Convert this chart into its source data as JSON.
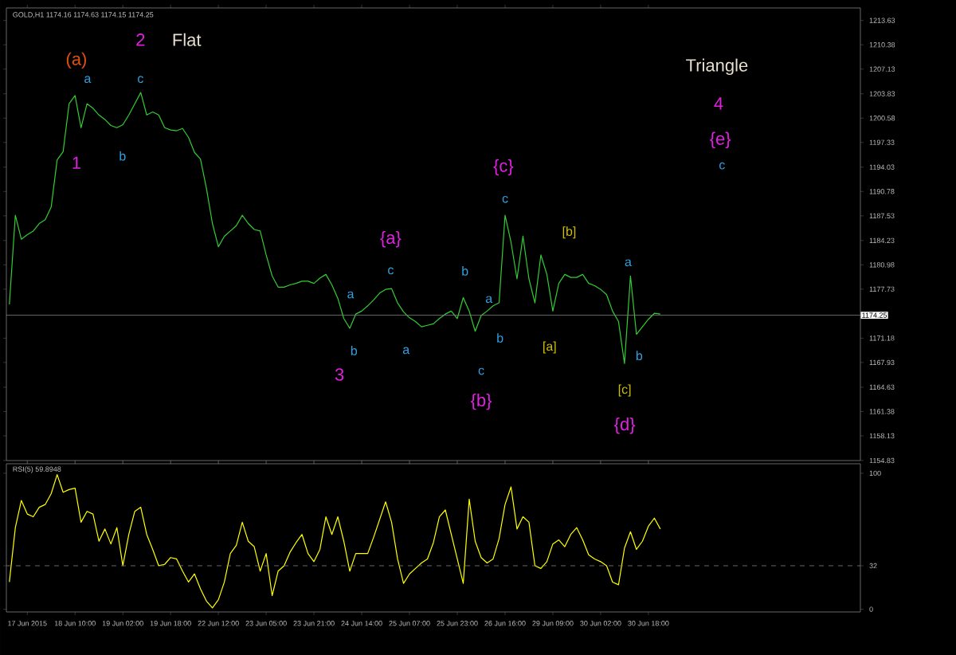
{
  "chart_data": [
    {
      "type": "line",
      "title": "GOLD,H1 1174.16 1174.63 1174.15 1174.25",
      "tick_labels": "y",
      "ylim": [
        1154.83,
        1215.3
      ],
      "categories": [
        null,
        null,
        null,
        null,
        null,
        null,
        null,
        null,
        null,
        null,
        null,
        null,
        null,
        null,
        null,
        null,
        null,
        null,
        null,
        null,
        null,
        null,
        null,
        null,
        null,
        null,
        null,
        null,
        null,
        null,
        null,
        null,
        null,
        null,
        null,
        null,
        null,
        null,
        null,
        null,
        null,
        null,
        null,
        null,
        null,
        null,
        null,
        null,
        null,
        null,
        null,
        null,
        null,
        null,
        null,
        null,
        null,
        null,
        null,
        null,
        null,
        null,
        null,
        null,
        null,
        null,
        null,
        null,
        null,
        null,
        null,
        null,
        null,
        null,
        null,
        null,
        null,
        null,
        null,
        null,
        null,
        null,
        null,
        null,
        null,
        null,
        null,
        null,
        null,
        null,
        null,
        null,
        null,
        null,
        null,
        null,
        null,
        null,
        null,
        null,
        null,
        null,
        null,
        null,
        null,
        null,
        null,
        null,
        null,
        null
      ],
      "yticks": [
        1154.83,
        1158.13,
        1161.38,
        1164.63,
        1167.93,
        1171.18,
        1177.73,
        1180.98,
        1184.23,
        1187.53,
        1190.78,
        1194.03,
        1197.33,
        1200.58,
        1203.83,
        1207.13,
        1210.38,
        1213.63
      ],
      "series": [
        {
          "color": "#33cc33",
          "values": [
            1175.7,
            1187.6,
            1184.4,
            1185.0,
            1185.5,
            1186.5,
            1187.0,
            1188.7,
            1195.0,
            1196.1,
            1202.5,
            1203.6,
            1199.3,
            1202.5,
            1201.9,
            1201.0,
            1200.4,
            1199.6,
            1199.3,
            1199.7,
            1201.0,
            1202.5,
            1204.0,
            1201.0,
            1201.4,
            1201.0,
            1199.3,
            1199.0,
            1198.9,
            1199.2,
            1198.0,
            1196.0,
            1195.1,
            1191.2,
            1186.5,
            1183.4,
            1184.8,
            1185.5,
            1186.2,
            1187.6,
            1186.5,
            1185.7,
            1185.5,
            1182.3,
            1179.5,
            1178.0,
            1178.0,
            1178.3,
            1178.5,
            1178.8,
            1178.8,
            1178.5,
            1179.2,
            1179.7,
            1178.3,
            1176.5,
            1173.8,
            1172.5,
            1174.4,
            1174.8,
            1175.5,
            1176.3,
            1177.2,
            1177.7,
            1177.8,
            1175.9,
            1174.7,
            1173.9,
            1173.4,
            1172.7,
            1172.9,
            1173.1,
            1173.8,
            1174.4,
            1174.8,
            1173.8,
            1176.6,
            1174.8,
            1172.1,
            1174.2,
            1174.8,
            1175.5,
            1175.9,
            1187.6,
            1184.0,
            1179.1,
            1184.8,
            1179.1,
            1175.9,
            1182.3,
            1179.7,
            1174.8,
            1178.5,
            1179.7,
            1179.3,
            1179.3,
            1179.7,
            1178.5,
            1178.2,
            1177.7,
            1177.0,
            1174.8,
            1173.4,
            1167.8,
            1179.5,
            1171.7,
            1172.7,
            1173.7,
            1174.5,
            1174.4
          ]
        }
      ],
      "ref_lines": [
        {
          "axis": "y",
          "value": 1174.25,
          "label": "1174.25",
          "color": "#808080",
          "line_style": "solid"
        }
      ],
      "annotations": [
        "(a)",
        "2",
        "Flat",
        "a",
        "c",
        "b",
        "1",
        "{a}",
        "c",
        "a",
        "b",
        "a",
        "3",
        "b",
        "a",
        "b",
        "c",
        "{b}",
        "{c}",
        "c",
        "[b]",
        "[a]",
        "a",
        "b",
        "[c]",
        "{d}",
        "Triangle",
        "4",
        "{e}",
        "c"
      ]
    },
    {
      "type": "line",
      "title": "RSI(5) 59.8948",
      "ylim": [
        -2,
        107
      ],
      "yticks": [
        0,
        32,
        100
      ],
      "categories": [
        null,
        null,
        null,
        "17 Jun 2015",
        null,
        null,
        null,
        null,
        null,
        null,
        null,
        "18 Jun 10:00",
        null,
        null,
        null,
        null,
        null,
        null,
        null,
        "19 Jun 02:00",
        null,
        null,
        null,
        null,
        null,
        null,
        null,
        "19 Jun 18:00",
        null,
        null,
        null,
        null,
        null,
        null,
        null,
        "22 Jun 12:00",
        null,
        null,
        null,
        null,
        null,
        null,
        null,
        "23 Jun 05:00",
        null,
        null,
        null,
        null,
        null,
        null,
        null,
        "23 Jun 21:00",
        null,
        null,
        null,
        null,
        null,
        null,
        null,
        "24 Jun 14:00",
        null,
        null,
        null,
        null,
        null,
        null,
        null,
        "25 Jun 07:00",
        null,
        null,
        null,
        null,
        null,
        null,
        null,
        "25 Jun 23:00",
        null,
        null,
        null,
        null,
        null,
        null,
        null,
        "26 Jun 16:00",
        null,
        null,
        null,
        null,
        null,
        null,
        null,
        "29 Jun 09:00",
        null,
        null,
        null,
        null,
        null,
        null,
        null,
        "30 Jun 02:00",
        null,
        null,
        null,
        null,
        null,
        null,
        null,
        "30 Jun 18:00",
        null,
        null
      ],
      "series": [
        {
          "color": "#ffff00",
          "values": [
            20,
            60,
            80,
            70,
            68,
            75,
            77,
            85,
            99,
            86,
            88,
            89,
            64,
            72,
            70,
            50,
            59,
            48,
            60,
            32,
            55,
            72,
            75,
            55,
            44,
            32,
            33,
            38,
            37,
            28,
            20,
            26,
            15,
            6,
            1,
            7,
            20,
            41,
            47,
            64,
            50,
            46,
            28,
            41,
            10,
            28,
            32,
            42,
            49,
            55,
            41,
            35,
            44,
            68,
            55,
            68,
            50,
            28,
            41,
            41,
            41,
            53,
            66,
            79,
            64,
            37,
            19,
            26,
            30,
            34,
            37,
            49,
            68,
            73,
            55,
            37,
            19,
            81,
            50,
            38,
            34,
            37,
            52,
            77,
            90,
            59,
            68,
            64,
            32,
            30,
            35,
            48,
            51,
            46,
            55,
            60,
            51,
            40,
            37,
            35,
            32,
            20,
            18,
            45,
            57,
            44,
            50,
            61,
            67,
            59
          ]
        }
      ],
      "ref_lines": [
        {
          "axis": "y",
          "value": 32,
          "color": "#808080",
          "line_style": "dashed"
        }
      ]
    }
  ]
}
